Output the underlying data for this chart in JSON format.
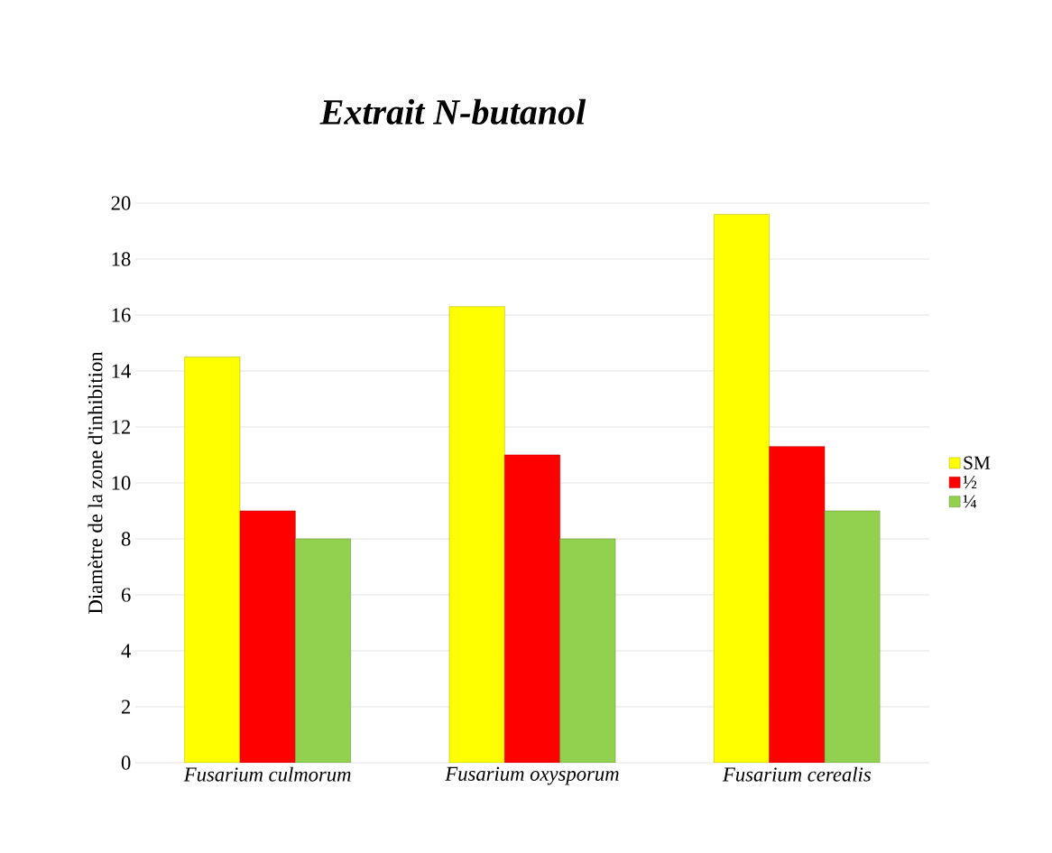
{
  "chart_data": {
    "type": "bar",
    "title": "Extrait N-butanol",
    "ylabel": "Diamètre de la zone d'inhibition",
    "categories": [
      "Fusarium culmorum",
      "Fusarium oxysporum",
      "Fusarium cerealis"
    ],
    "series": [
      {
        "name": "SM",
        "color": "#ffff00",
        "values": [
          14.5,
          16.3,
          19.6
        ]
      },
      {
        "name": "½",
        "color": "#ff0000",
        "values": [
          9,
          11,
          11.3
        ]
      },
      {
        "name": "¼",
        "color": "#92d050",
        "values": [
          8,
          8,
          9
        ]
      }
    ],
    "ylim": [
      0,
      20
    ],
    "yticks": [
      0,
      2,
      4,
      6,
      8,
      10,
      12,
      14,
      16,
      18,
      20
    ],
    "grid": "y",
    "legend": "right"
  }
}
